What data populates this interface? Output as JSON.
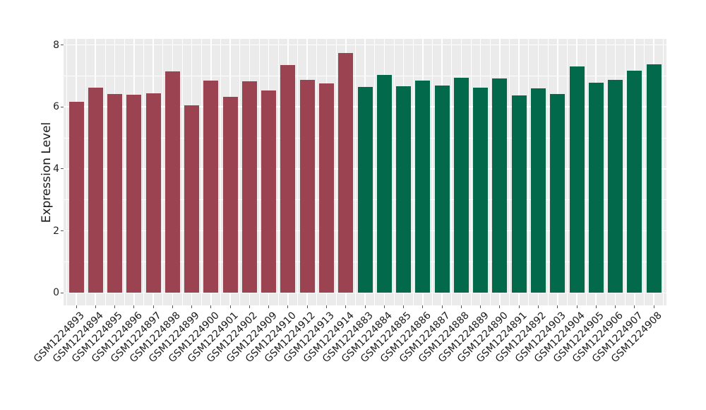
{
  "figure": {
    "background": "#ffffff",
    "panel_background": "#EBEBEB",
    "gridline_color": "#ffffff",
    "tick_color": "#555555",
    "text_color": "#1a1a1a"
  },
  "chart_data": {
    "type": "bar",
    "title": "",
    "xlabel": "",
    "ylabel": "Expression Level",
    "ylim": [
      0,
      8
    ],
    "yticks": [
      0,
      2,
      4,
      6,
      8
    ],
    "yticks_minor": [
      1,
      3,
      5,
      7
    ],
    "grid": true,
    "legend": "none",
    "bar_width_ratio": 0.8,
    "groups": [
      {
        "name": "group-maroon",
        "color": "#9B4351"
      },
      {
        "name": "group-green",
        "color": "#02694A"
      }
    ],
    "categories": [
      "GSM1224893",
      "GSM1224894",
      "GSM1224895",
      "GSM1224896",
      "GSM1224897",
      "GSM1224898",
      "GSM1224899",
      "GSM1224900",
      "GSM1224901",
      "GSM1224902",
      "GSM1224909",
      "GSM1224910",
      "GSM1224912",
      "GSM1224913",
      "GSM1224914",
      "GSM1224883",
      "GSM1224884",
      "GSM1224885",
      "GSM1224886",
      "GSM1224887",
      "GSM1224888",
      "GSM1224889",
      "GSM1224890",
      "GSM1224891",
      "GSM1224892",
      "GSM1224903",
      "GSM1224904",
      "GSM1224905",
      "GSM1224906",
      "GSM1224907",
      "GSM1224908"
    ],
    "values": [
      6.16,
      6.62,
      6.42,
      6.39,
      6.45,
      7.14,
      6.05,
      6.85,
      6.33,
      6.83,
      6.52,
      7.35,
      6.88,
      6.76,
      7.75,
      6.64,
      7.04,
      6.67,
      6.84,
      6.69,
      6.95,
      6.62,
      6.92,
      6.38,
      6.61,
      6.41,
      7.3,
      6.78,
      6.88,
      7.16,
      7.37
    ],
    "bar_groups": [
      0,
      0,
      0,
      0,
      0,
      0,
      0,
      0,
      0,
      0,
      0,
      0,
      0,
      0,
      0,
      1,
      1,
      1,
      1,
      1,
      1,
      1,
      1,
      1,
      1,
      1,
      1,
      1,
      1,
      1,
      1
    ]
  }
}
